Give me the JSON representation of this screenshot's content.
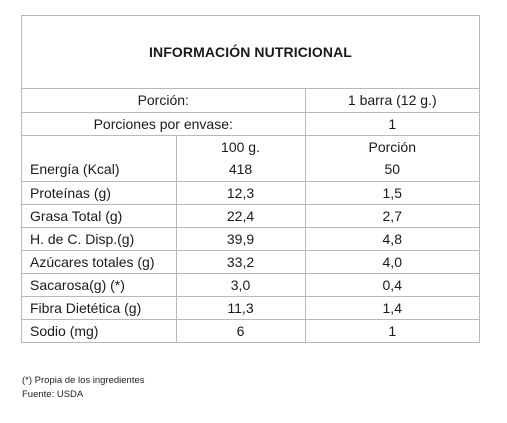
{
  "title": "INFORMACIÓN NUTRICIONAL",
  "serving": {
    "label": "Porción:",
    "value": "1 barra (12 g.)"
  },
  "servings_per_container": {
    "label": "Porciones por envase:",
    "value": "1"
  },
  "columns": {
    "per100": "100 g.",
    "per_serving": "Porción"
  },
  "rows": [
    {
      "name": "Energía (Kcal)",
      "per100": "418",
      "per_serving": "50"
    },
    {
      "name": "Proteínas (g)",
      "per100": "12,3",
      "per_serving": "1,5"
    },
    {
      "name": "Grasa Total (g)",
      "per100": "22,4",
      "per_serving": "2,7"
    },
    {
      "name": "H. de C. Disp.(g)",
      "per100": "39,9",
      "per_serving": "4,8"
    },
    {
      "name": "Azúcares totales (g)",
      "per100": "33,2",
      "per_serving": "4,0"
    },
    {
      "name": "Sacarosa(g) (*)",
      "per100": "3,0",
      "per_serving": "0,4"
    },
    {
      "name": "Fibra Dietética (g)",
      "per100": "11,3",
      "per_serving": "1,4"
    },
    {
      "name": "Sodio (mg)",
      "per100": "6",
      "per_serving": "1"
    }
  ],
  "footnotes": {
    "asterisk": "(*) Propia de los ingredientes",
    "source": "Fuente: USDA"
  }
}
